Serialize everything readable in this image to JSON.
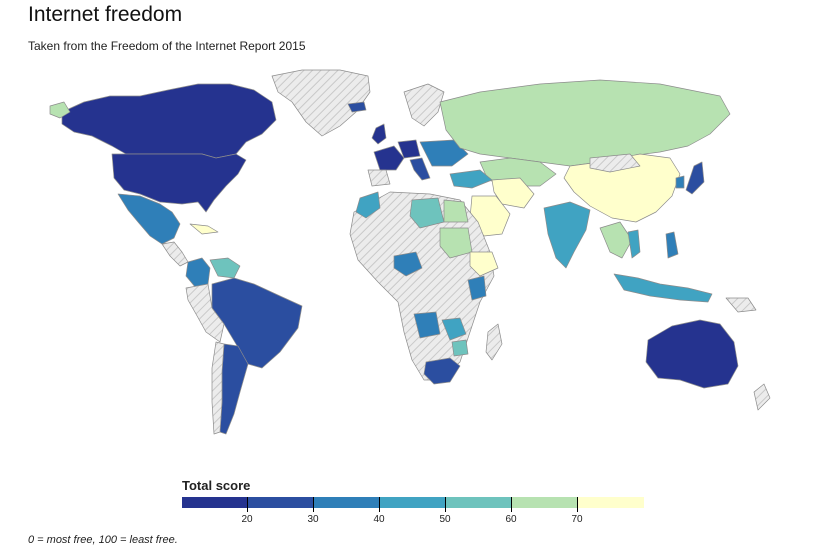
{
  "header": {
    "title": "Internet freedom",
    "subtitle": "Taken from the Freedom of the Internet Report 2015"
  },
  "legend": {
    "title": "Total score",
    "colors": [
      "#25338f",
      "#2b4ea0",
      "#2f7fb8",
      "#40a3c2",
      "#6ec3bd",
      "#b7e2b1",
      "#ffffcc"
    ],
    "ticks": [
      "20",
      "30",
      "40",
      "50",
      "60",
      "70"
    ]
  },
  "footnote": "0 = most free, 100 = least free.",
  "colors": {
    "no_data_fill": "#e9e9e9",
    "no_data_hatch": "#c8c8c8",
    "border": "#9a9a9a"
  }
}
